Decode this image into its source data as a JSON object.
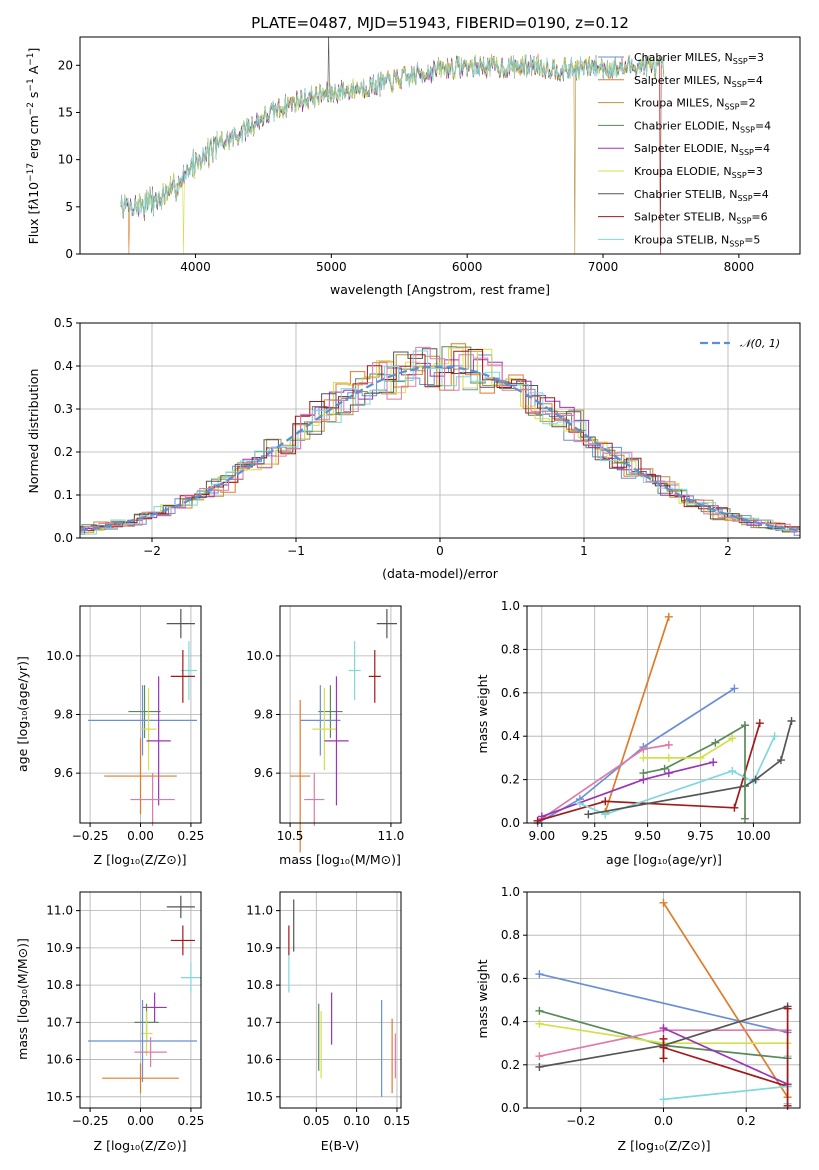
{
  "colors": {
    "Chabrier MILES": "#6a8fd6",
    "Salpeter MILES": "#e07b2a",
    "Kroupa MILES": "#b8923a",
    "Chabrier ELODIE": "#5a8a5a",
    "Salpeter ELODIE": "#9a35b8",
    "Kroupa ELODIE": "#d4e04a",
    "Chabrier STELIB": "#555555",
    "Salpeter STELIB": "#a31818",
    "Kroupa STELIB": "#7fd8da",
    "pink": "#e07aa8",
    "grid": "#b0b0b0",
    "dashed": "#5b8fd6"
  },
  "spectrum": {
    "title": "PLATE=0487, MJD=51943, FIBERID=0190, z=0.12",
    "xlabel": "wavelength [Angstrom, rest frame]",
    "ylabel": "Flux [fλ10⁻¹⁷ erg cm⁻² s⁻¹ A⁻¹]",
    "xticks": [
      "4000",
      "5000",
      "6000",
      "7000",
      "8000"
    ],
    "yticks": [
      "0",
      "5",
      "10",
      "15",
      "20"
    ],
    "legend": [
      {
        "label": "Chabrier MILES, N",
        "n": "=3",
        "key": "Chabrier MILES"
      },
      {
        "label": "Salpeter MILES, N",
        "n": "=4",
        "key": "Salpeter MILES"
      },
      {
        "label": "Kroupa MILES, N",
        "n": "=2",
        "key": "Kroupa MILES"
      },
      {
        "label": "Chabrier ELODIE, N",
        "n": "=4",
        "key": "Chabrier ELODIE"
      },
      {
        "label": "Salpeter ELODIE, N",
        "n": "=4",
        "key": "Salpeter ELODIE"
      },
      {
        "label": "Kroupa ELODIE, N",
        "n": "=3",
        "key": "Kroupa ELODIE"
      },
      {
        "label": "Chabrier STELIB, N",
        "n": "=4",
        "key": "Chabrier STELIB"
      },
      {
        "label": "Salpeter STELIB, N",
        "n": "=6",
        "key": "Salpeter STELIB"
      },
      {
        "label": "Kroupa STELIB, N",
        "n": "=5",
        "key": "Kroupa STELIB"
      }
    ],
    "sub": "SSP"
  },
  "residuals": {
    "xlabel": "(data-model)/error",
    "ylabel": "Normed distribution",
    "xticks": [
      "−2",
      "−1",
      "0",
      "1",
      "2"
    ],
    "yticks": [
      "0.0",
      "0.1",
      "0.2",
      "0.3",
      "0.4",
      "0.5"
    ],
    "legend": "𝒩(0, 1)"
  },
  "panels": {
    "age_vs_Z": {
      "xlabel": "Z [log₁₀(Z/Z⊙)]",
      "ylabel": "age  [log₁₀(age/yr)]",
      "xticks": [
        "−0.25",
        "0.00",
        "0.25"
      ],
      "yticks": [
        "9.6",
        "9.8",
        "10.0"
      ]
    },
    "age_vs_mass": {
      "xlabel": "mass [log₁₀(M/M⊙)]",
      "xticks": [
        "10.5",
        "11.0"
      ],
      "yticks": [
        "9.6",
        "9.8",
        "10.0"
      ]
    },
    "weight_vs_age": {
      "xlabel": "age  [log₁₀(age/yr)]",
      "ylabel": "mass weight",
      "xticks": [
        "9.00",
        "9.25",
        "9.50",
        "9.75",
        "10.00"
      ],
      "yticks": [
        "0.0",
        "0.2",
        "0.4",
        "0.6",
        "0.8",
        "1.0"
      ]
    },
    "mass_vs_Z": {
      "xlabel": "Z [log₁₀(Z/Z⊙)]",
      "ylabel": "mass [log₁₀(M/M⊙)]",
      "xticks": [
        "−0.25",
        "0.00",
        "0.25"
      ],
      "yticks": [
        "10.5",
        "10.6",
        "10.7",
        "10.8",
        "10.9",
        "11.0"
      ]
    },
    "mass_vs_ebv": {
      "xlabel": "E(B-V)",
      "xticks": [
        "0.05",
        "0.10",
        "0.15"
      ],
      "yticks": [
        "10.5",
        "10.6",
        "10.7",
        "10.8",
        "10.9",
        "11.0"
      ]
    },
    "weight_vs_Z": {
      "xlabel": "Z [log₁₀(Z/Z⊙)]",
      "ylabel": "mass weight",
      "xticks": [
        "−0.2",
        "0.0",
        "0.2"
      ],
      "yticks": [
        "0.0",
        "0.2",
        "0.4",
        "0.6",
        "0.8",
        "1.0"
      ]
    }
  },
  "chart_data": [
    {
      "type": "line",
      "title": "PLATE=0487, MJD=51943, FIBERID=0190, z=0.12",
      "xlabel": "wavelength [Angstrom, rest frame]",
      "ylabel": "Flux",
      "xlim": [
        3150,
        8450
      ],
      "ylim": [
        0,
        23
      ],
      "continuum": [
        [
          3450,
          5.0
        ],
        [
          3600,
          5.2
        ],
        [
          3800,
          6.2
        ],
        [
          3950,
          9.0
        ],
        [
          4100,
          11.0
        ],
        [
          4300,
          12.5
        ],
        [
          4500,
          14.5
        ],
        [
          4700,
          16.0
        ],
        [
          4900,
          16.8
        ],
        [
          5100,
          17.3
        ],
        [
          5300,
          17.8
        ],
        [
          5500,
          18.5
        ],
        [
          5700,
          19.3
        ],
        [
          5900,
          19.8
        ],
        [
          6100,
          19.9
        ],
        [
          6300,
          19.8
        ],
        [
          6500,
          20.0
        ],
        [
          6700,
          19.5
        ],
        [
          6900,
          19.8
        ],
        [
          7100,
          19.7
        ],
        [
          7300,
          20.0
        ],
        [
          7450,
          19.8
        ]
      ],
      "series": [
        "Chabrier MILES",
        "Salpeter MILES",
        "Kroupa MILES",
        "Chabrier ELODIE",
        "Salpeter ELODIE",
        "Kroupa ELODIE",
        "Chabrier STELIB",
        "Salpeter STELIB",
        "Kroupa STELIB"
      ]
    },
    {
      "type": "bar",
      "xlabel": "(data-model)/error",
      "ylabel": "Normed distribution",
      "xlim": [
        -2.5,
        2.5
      ],
      "ylim": [
        0,
        0.5
      ],
      "gaussian": "N(0,1)",
      "bin_width": 0.1
    },
    {
      "type": "scatter",
      "panel": "age_vs_Z",
      "xlim": [
        -0.3,
        0.3
      ],
      "ylim": [
        9.43,
        10.17
      ],
      "points": [
        {
          "s": "Chabrier STELIB",
          "x": 0.2,
          "y": 10.11,
          "xe": 0.07,
          "ye": 0.05
        },
        {
          "s": "Kroupa STELIB",
          "x": 0.24,
          "y": 9.95,
          "xe": 0.04,
          "ye": 0.1
        },
        {
          "s": "Salpeter STELIB",
          "x": 0.21,
          "y": 9.93,
          "xe": 0.06,
          "ye": 0.09
        },
        {
          "s": "Chabrier ELODIE",
          "x": 0.02,
          "y": 9.81,
          "xe": 0.08,
          "ye": 0.09
        },
        {
          "s": "Chabrier MILES",
          "x": 0.01,
          "y": 9.78,
          "xe": 0.27,
          "ye": 0.12
        },
        {
          "s": "Kroupa ELODIE",
          "x": 0.04,
          "y": 9.75,
          "xe": 0.04,
          "ye": 0.14
        },
        {
          "s": "Salpeter ELODIE",
          "x": 0.09,
          "y": 9.71,
          "xe": 0.06,
          "ye": 0.22
        },
        {
          "s": "Salpeter MILES",
          "x": 0.0,
          "y": 9.59,
          "xe": 0.18,
          "ye": 0.13
        },
        {
          "s": "pink",
          "x": 0.06,
          "y": 9.51,
          "xe": 0.11,
          "ye": 0.09
        }
      ]
    },
    {
      "type": "scatter",
      "panel": "age_vs_mass",
      "xlim": [
        10.45,
        11.05
      ],
      "ylim": [
        9.43,
        10.17
      ],
      "points": [
        {
          "s": "Chabrier STELIB",
          "x": 10.98,
          "y": 10.11,
          "xe": 0.05,
          "ye": 0.05
        },
        {
          "s": "Kroupa STELIB",
          "x": 10.82,
          "y": 9.95,
          "xe": 0.03,
          "ye": 0.1
        },
        {
          "s": "Salpeter STELIB",
          "x": 10.92,
          "y": 9.93,
          "xe": 0.03,
          "ye": 0.09
        },
        {
          "s": "Chabrier ELODIE",
          "x": 10.7,
          "y": 9.81,
          "xe": 0.06,
          "ye": 0.09
        },
        {
          "s": "Chabrier MILES",
          "x": 10.65,
          "y": 9.78,
          "xe": 0.1,
          "ye": 0.12
        },
        {
          "s": "Kroupa ELODIE",
          "x": 10.67,
          "y": 9.75,
          "xe": 0.06,
          "ye": 0.14
        },
        {
          "s": "Salpeter ELODIE",
          "x": 10.73,
          "y": 9.71,
          "xe": 0.06,
          "ye": 0.22
        },
        {
          "s": "Salpeter MILES",
          "x": 10.55,
          "y": 9.59,
          "xe": 0.05,
          "ye": 0.26
        },
        {
          "s": "pink",
          "x": 10.62,
          "y": 9.51,
          "xe": 0.05,
          "ye": 0.09
        }
      ]
    },
    {
      "type": "line",
      "panel": "weight_vs_age",
      "xlim": [
        8.93,
        10.22
      ],
      "ylim": [
        0,
        1.0
      ],
      "series": [
        {
          "s": "Salpeter MILES",
          "x": [
            9.3,
            9.6
          ],
          "y": [
            0.05,
            0.95
          ]
        },
        {
          "s": "Chabrier MILES",
          "x": [
            8.98,
            9.18,
            9.48,
            9.91
          ],
          "y": [
            0.0,
            0.11,
            0.35,
            0.62
          ]
        },
        {
          "s": "pink",
          "x": [
            9.0,
            9.48,
            9.6
          ],
          "y": [
            0.02,
            0.34,
            0.36
          ]
        },
        {
          "s": "Salpeter ELODIE",
          "x": [
            9.0,
            9.48,
            9.6,
            9.81
          ],
          "y": [
            0.03,
            0.2,
            0.23,
            0.28
          ]
        },
        {
          "s": "Chabrier ELODIE",
          "x": [
            9.48,
            9.58,
            9.82,
            9.96
          ],
          "y": [
            0.23,
            0.25,
            0.37,
            0.45
          ]
        },
        {
          "s": "Kroupa ELODIE",
          "x": [
            9.48,
            9.6,
            9.75,
            9.9
          ],
          "y": [
            0.3,
            0.3,
            0.3,
            0.39
          ]
        },
        {
          "s": "Salpeter STELIB",
          "x": [
            8.98,
            9.3,
            9.91,
            10.03
          ],
          "y": [
            0.01,
            0.1,
            0.07,
            0.46
          ]
        },
        {
          "s": "Kroupa STELIB",
          "x": [
            9.18,
            9.3,
            9.9,
            10.0,
            10.1
          ],
          "y": [
            0.09,
            0.04,
            0.24,
            0.19,
            0.4
          ]
        },
        {
          "s": "Chabrier STELIB",
          "x": [
            9.22,
            9.96,
            10.01,
            10.13,
            10.18
          ],
          "y": [
            0.04,
            0.17,
            0.2,
            0.29,
            0.47
          ]
        },
        {
          "s": "Chabrier ELODIE",
          "x": [
            9.96,
            9.96
          ],
          "y": [
            0.02,
            0.45
          ]
        }
      ]
    },
    {
      "type": "scatter",
      "panel": "mass_vs_Z",
      "xlim": [
        -0.3,
        0.3
      ],
      "ylim": [
        10.47,
        11.05
      ],
      "points": [
        {
          "s": "Chabrier STELIB",
          "x": 0.2,
          "y": 11.01,
          "xe": 0.07,
          "ye": 0.03
        },
        {
          "s": "Salpeter STELIB",
          "x": 0.21,
          "y": 10.92,
          "xe": 0.06,
          "ye": 0.04
        },
        {
          "s": "Kroupa STELIB",
          "x": 0.25,
          "y": 10.82,
          "xe": 0.05,
          "ye": 0.04
        },
        {
          "s": "Salpeter ELODIE",
          "x": 0.07,
          "y": 10.74,
          "xe": 0.06,
          "ye": 0.04
        },
        {
          "s": "Chabrier ELODIE",
          "x": 0.03,
          "y": 10.7,
          "xe": 0.06,
          "ye": 0.05
        },
        {
          "s": "Kroupa ELODIE",
          "x": 0.03,
          "y": 10.67,
          "xe": 0.03,
          "ye": 0.06
        },
        {
          "s": "Chabrier MILES",
          "x": 0.01,
          "y": 10.65,
          "xe": 0.27,
          "ye": 0.11
        },
        {
          "s": "pink",
          "x": 0.05,
          "y": 10.62,
          "xe": 0.08,
          "ye": 0.04
        },
        {
          "s": "Salpeter MILES",
          "x": 0.0,
          "y": 10.55,
          "xe": 0.19,
          "ye": 0.04
        }
      ]
    },
    {
      "type": "scatter",
      "panel": "mass_vs_ebv",
      "xlim": [
        0.005,
        0.155
      ],
      "ylim": [
        10.47,
        11.05
      ],
      "points": [
        {
          "s": "Chabrier STELIB",
          "x": 0.022,
          "y": 10.96,
          "ye": 0.07
        },
        {
          "s": "Salpeter STELIB",
          "x": 0.016,
          "y": 10.92,
          "ye": 0.04
        },
        {
          "s": "Kroupa STELIB",
          "x": 0.016,
          "y": 10.83,
          "ye": 0.05
        },
        {
          "s": "Chabrier ELODIE",
          "x": 0.053,
          "y": 10.66,
          "ye": 0.09
        },
        {
          "s": "Kroupa ELODIE",
          "x": 0.056,
          "y": 10.64,
          "ye": 0.09
        },
        {
          "s": "Salpeter ELODIE",
          "x": 0.069,
          "y": 10.71,
          "ye": 0.07
        },
        {
          "s": "Chabrier MILES",
          "x": 0.131,
          "y": 10.63,
          "ye": 0.13
        },
        {
          "s": "Salpeter MILES",
          "x": 0.144,
          "y": 10.61,
          "ye": 0.1
        },
        {
          "s": "pink",
          "x": 0.148,
          "y": 10.61,
          "ye": 0.06
        }
      ]
    },
    {
      "type": "line",
      "panel": "weight_vs_Z",
      "xlim": [
        -0.33,
        0.33
      ],
      "ylim": [
        0,
        1.0
      ],
      "series": [
        {
          "s": "Salpeter MILES",
          "x": [
            0.0,
            0.3
          ],
          "y": [
            0.95,
            0.05
          ]
        },
        {
          "s": "Chabrier MILES",
          "x": [
            -0.3,
            0.3
          ],
          "y": [
            0.62,
            0.35
          ]
        },
        {
          "s": "Chabrier ELODIE",
          "x": [
            -0.3,
            0.0,
            0.3
          ],
          "y": [
            0.45,
            0.29,
            0.23
          ]
        },
        {
          "s": "Kroupa ELODIE",
          "x": [
            -0.3,
            0.0,
            0.3
          ],
          "y": [
            0.39,
            0.3,
            0.3
          ]
        },
        {
          "s": "pink",
          "x": [
            -0.3,
            0.0,
            0.3
          ],
          "y": [
            0.24,
            0.36,
            0.36
          ]
        },
        {
          "s": "Salpeter ELODIE",
          "x": [
            0.0,
            0.3
          ],
          "y": [
            0.37,
            0.11
          ]
        },
        {
          "s": "Chabrier STELIB",
          "x": [
            -0.3,
            0.0,
            0.3
          ],
          "y": [
            0.19,
            0.29,
            0.47
          ]
        },
        {
          "s": "Salpeter STELIB",
          "x": [
            0.0,
            0.3
          ],
          "y": [
            0.28,
            0.1
          ]
        },
        {
          "s": "Kroupa STELIB",
          "x": [
            0.0,
            0.3
          ],
          "y": [
            0.04,
            0.1
          ]
        },
        {
          "s": "Salpeter STELIB",
          "x": [
            0.0,
            0.0
          ],
          "y": [
            0.23,
            0.32
          ]
        },
        {
          "s": "Kroupa STELIB",
          "x": [
            0.3,
            0.3
          ],
          "y": [
            0.02,
            0.24
          ]
        },
        {
          "s": "Salpeter STELIB",
          "x": [
            0.3,
            0.3
          ],
          "y": [
            0.01,
            0.46
          ]
        }
      ]
    }
  ]
}
